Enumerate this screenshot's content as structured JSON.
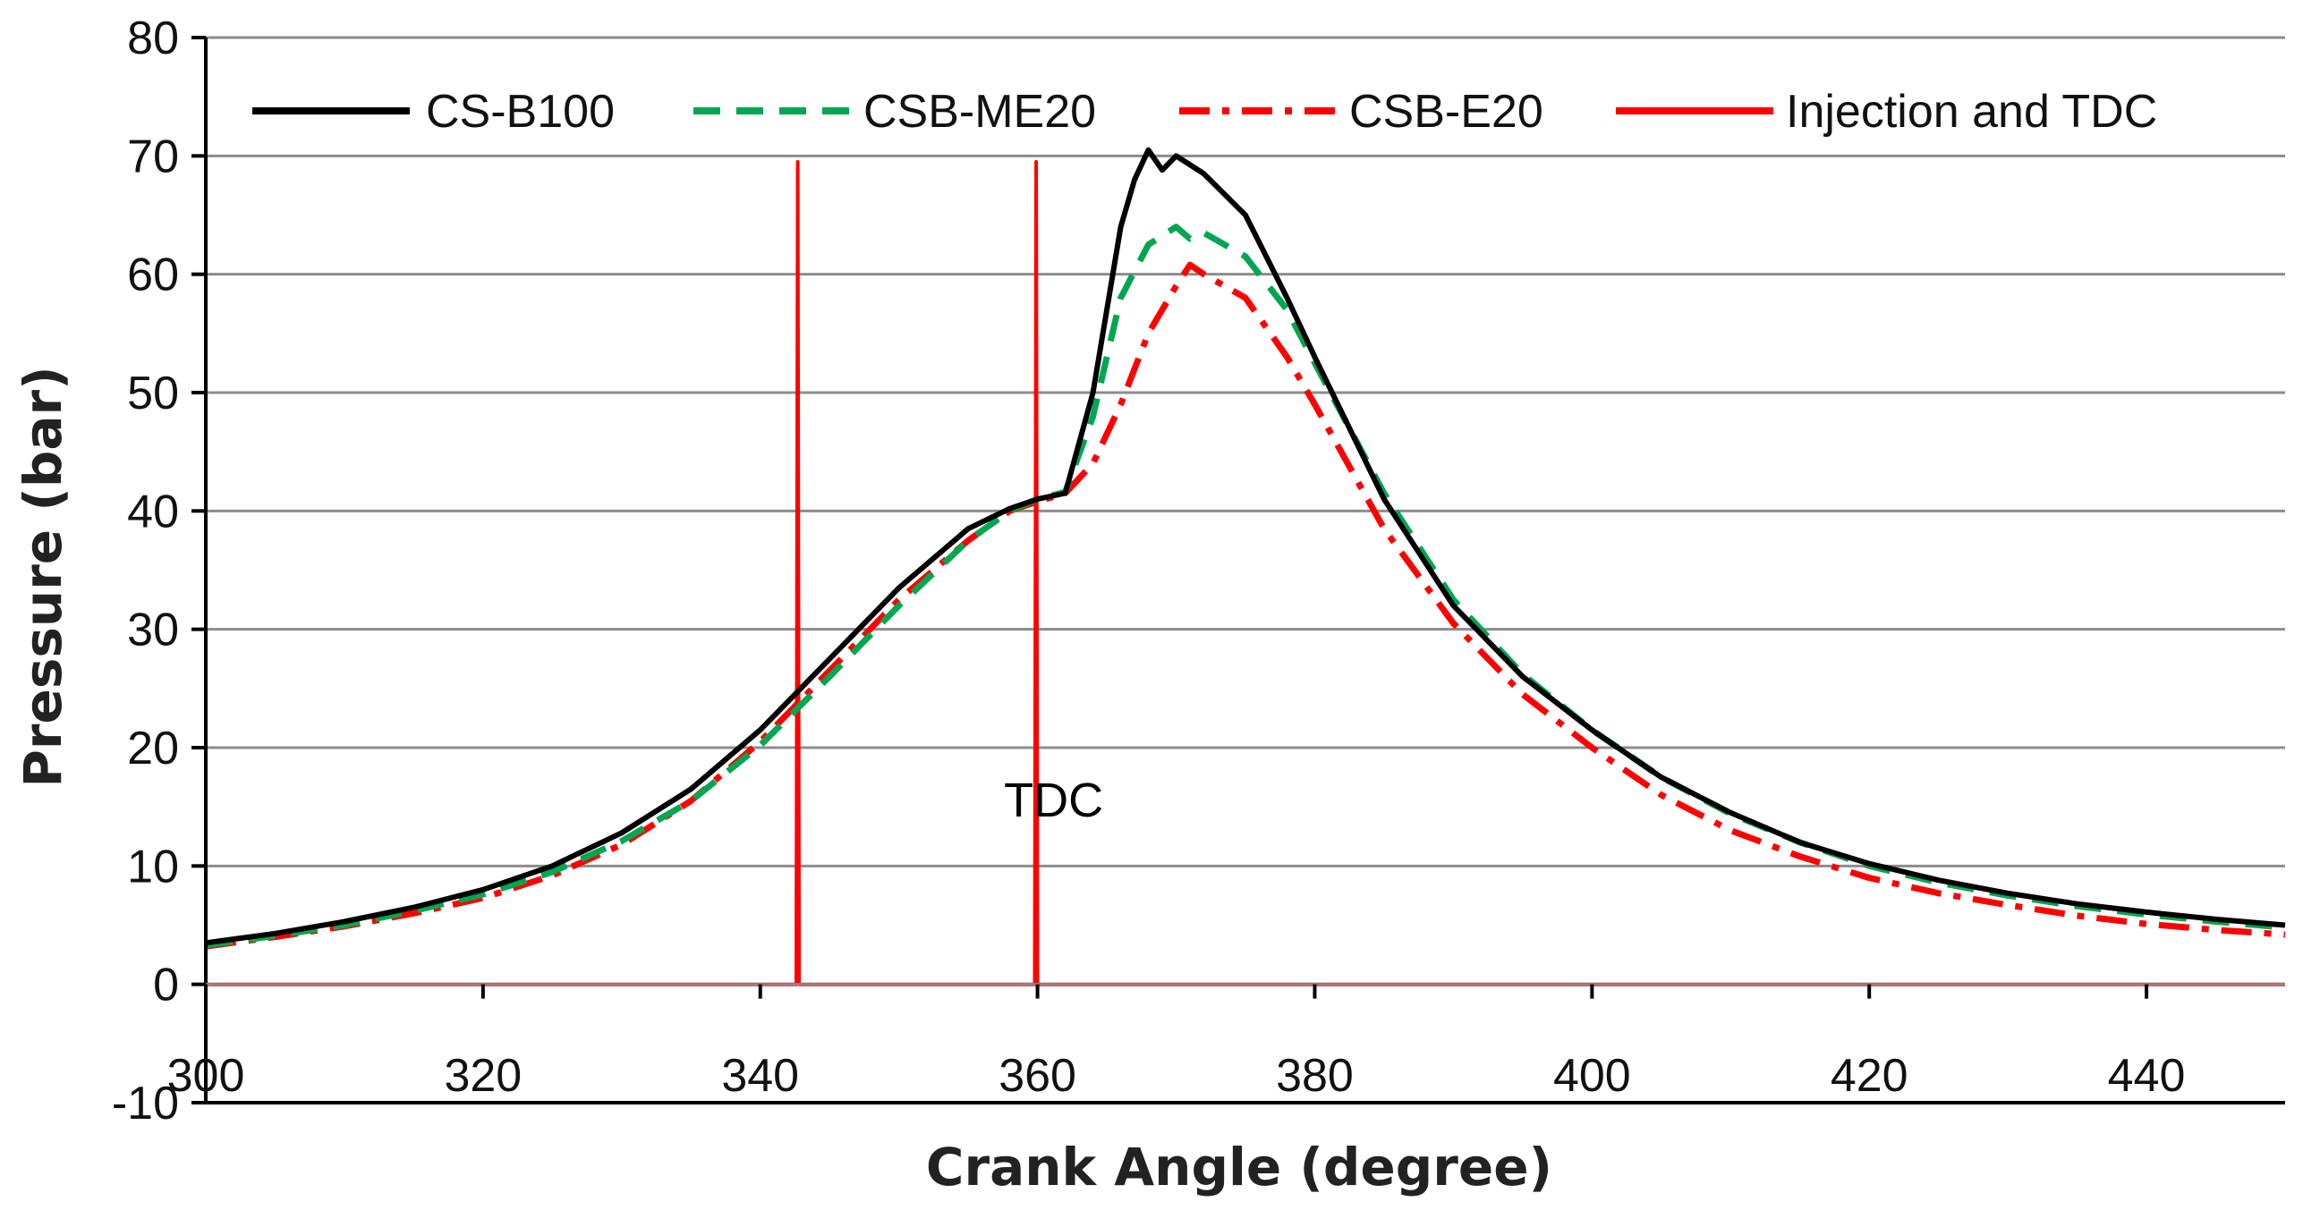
{
  "chart_data": {
    "type": "line",
    "title": "",
    "xlabel": "Crank Angle  (degree)",
    "ylabel": "Pressure (bar)",
    "xlim": [
      300,
      450
    ],
    "ylim": [
      -10,
      80
    ],
    "x_ticks": [
      300,
      320,
      340,
      360,
      380,
      400,
      420,
      440
    ],
    "y_ticks": [
      -10,
      0,
      10,
      20,
      30,
      40,
      50,
      60,
      70,
      80
    ],
    "x_tick_labels": [
      "300",
      "320",
      "340",
      "360",
      "380",
      "400",
      "420",
      "440"
    ],
    "y_tick_labels": [
      "-10",
      "0",
      "10",
      "20",
      "30",
      "40",
      "50",
      "60",
      "70",
      "80"
    ],
    "grid": true,
    "legend_position": "top",
    "series": [
      {
        "name": "CS-B100",
        "color": "#000000",
        "style": "solid",
        "points": [
          [
            300,
            3.5
          ],
          [
            305,
            4.3
          ],
          [
            310,
            5.3
          ],
          [
            315,
            6.5
          ],
          [
            320,
            8.0
          ],
          [
            325,
            10.0
          ],
          [
            330,
            12.8
          ],
          [
            335,
            16.5
          ],
          [
            340,
            21.5
          ],
          [
            345,
            27.5
          ],
          [
            350,
            33.5
          ],
          [
            355,
            38.5
          ],
          [
            358,
            40.2
          ],
          [
            360,
            41.0
          ],
          [
            362,
            41.5
          ],
          [
            364,
            50
          ],
          [
            366,
            64
          ],
          [
            367,
            68
          ],
          [
            368,
            70.5
          ],
          [
            369,
            68.8
          ],
          [
            370,
            70
          ],
          [
            372,
            68.5
          ],
          [
            375,
            65
          ],
          [
            378,
            58
          ],
          [
            380,
            53
          ],
          [
            385,
            41
          ],
          [
            390,
            32
          ],
          [
            395,
            26
          ],
          [
            400,
            21.5
          ],
          [
            405,
            17.5
          ],
          [
            410,
            14.5
          ],
          [
            415,
            12.0
          ],
          [
            420,
            10.2
          ],
          [
            425,
            8.8
          ],
          [
            430,
            7.7
          ],
          [
            435,
            6.8
          ],
          [
            440,
            6.1
          ],
          [
            445,
            5.5
          ],
          [
            450,
            5.0
          ]
        ]
      },
      {
        "name": "CSB-ME20",
        "color": "#00a651",
        "style": "dashed",
        "points": [
          [
            300,
            3.3
          ],
          [
            305,
            4.1
          ],
          [
            310,
            5.0
          ],
          [
            315,
            6.2
          ],
          [
            320,
            7.6
          ],
          [
            325,
            9.5
          ],
          [
            330,
            12.1
          ],
          [
            335,
            15.5
          ],
          [
            340,
            20.2
          ],
          [
            345,
            26.0
          ],
          [
            350,
            32.0
          ],
          [
            355,
            37.5
          ],
          [
            358,
            40.0
          ],
          [
            360,
            41.0
          ],
          [
            362,
            41.6
          ],
          [
            364,
            48
          ],
          [
            366,
            58
          ],
          [
            368,
            62.5
          ],
          [
            370,
            64
          ],
          [
            371,
            63
          ],
          [
            372,
            63.5
          ],
          [
            375,
            61.5
          ],
          [
            378,
            57
          ],
          [
            380,
            52.5
          ],
          [
            385,
            41.5
          ],
          [
            390,
            32.5
          ],
          [
            395,
            26.2
          ],
          [
            400,
            21.5
          ],
          [
            405,
            17.5
          ],
          [
            410,
            14.4
          ],
          [
            415,
            12.0
          ],
          [
            420,
            10.0
          ],
          [
            425,
            8.6
          ],
          [
            430,
            7.5
          ],
          [
            435,
            6.6
          ],
          [
            440,
            5.9
          ],
          [
            445,
            5.3
          ],
          [
            450,
            4.8
          ]
        ]
      },
      {
        "name": "CSB-E20",
        "color": "#ff0000",
        "style": "dashdot",
        "points": [
          [
            300,
            3.2
          ],
          [
            305,
            4.0
          ],
          [
            310,
            4.9
          ],
          [
            315,
            6.0
          ],
          [
            320,
            7.3
          ],
          [
            325,
            9.2
          ],
          [
            330,
            11.8
          ],
          [
            335,
            15.5
          ],
          [
            340,
            20.5
          ],
          [
            345,
            26.5
          ],
          [
            350,
            32.5
          ],
          [
            355,
            37.5
          ],
          [
            358,
            40.0
          ],
          [
            360,
            40.8
          ],
          [
            362,
            41.5
          ],
          [
            364,
            44
          ],
          [
            366,
            49
          ],
          [
            368,
            55
          ],
          [
            370,
            59
          ],
          [
            371,
            60.8
          ],
          [
            372,
            60
          ],
          [
            375,
            58
          ],
          [
            378,
            53
          ],
          [
            380,
            49
          ],
          [
            385,
            38.5
          ],
          [
            390,
            30.5
          ],
          [
            395,
            24.5
          ],
          [
            400,
            20
          ],
          [
            405,
            16
          ],
          [
            410,
            13
          ],
          [
            415,
            10.8
          ],
          [
            420,
            9.0
          ],
          [
            425,
            7.7
          ],
          [
            430,
            6.7
          ],
          [
            435,
            5.8
          ],
          [
            440,
            5.1
          ],
          [
            445,
            4.6
          ],
          [
            450,
            4.2
          ]
        ]
      },
      {
        "name": "Injection and TDC",
        "color": "#ff0000",
        "style": "solid",
        "points": [
          [
            300,
            0
          ],
          [
            342.6,
            0
          ],
          [
            342.7,
            69.5
          ],
          [
            342.8,
            0
          ],
          [
            359.8,
            0
          ],
          [
            359.9,
            69.5
          ],
          [
            360.0,
            0
          ],
          [
            450,
            0
          ]
        ]
      }
    ],
    "annotations": [
      {
        "text": "TDC",
        "x": 360,
        "y": 16
      }
    ]
  }
}
